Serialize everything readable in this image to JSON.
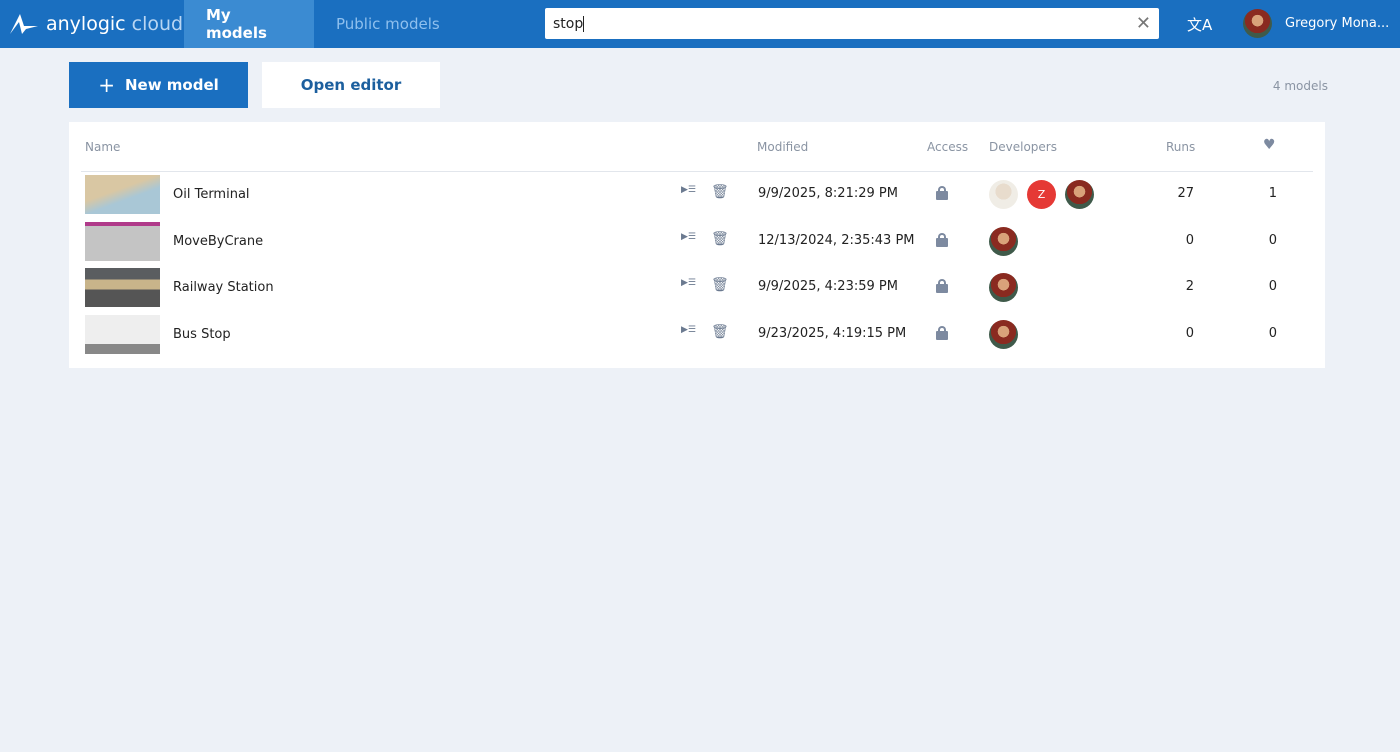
{
  "header": {
    "logo_main": "anylogic",
    "logo_sub": "cloud",
    "tabs": [
      {
        "label": "My models",
        "active": true
      },
      {
        "label": "Public models",
        "active": false
      }
    ],
    "search": {
      "value": "stop"
    },
    "translate_icon": "translate-icon",
    "user_name": "Gregory Mona..."
  },
  "toolbar": {
    "new_model": "New model",
    "open_editor": "Open editor",
    "count": "4 models"
  },
  "table": {
    "headers": {
      "name": "Name",
      "modified": "Modified",
      "access": "Access",
      "developers": "Developers",
      "runs": "Runs",
      "likes_icon": "heart-icon"
    },
    "rows": [
      {
        "name": "Oil Terminal",
        "modified": "9/9/2025, 8:21:29 PM",
        "runs": "27",
        "likes": "1",
        "developers": [
          "photo",
          "Z",
          "photo"
        ]
      },
      {
        "name": "MoveByCrane",
        "modified": "12/13/2024, 2:35:43 PM",
        "runs": "0",
        "likes": "0",
        "developers": [
          "photo"
        ]
      },
      {
        "name": "Railway Station",
        "modified": "9/9/2025, 4:23:59 PM",
        "runs": "2",
        "likes": "0",
        "developers": [
          "photo"
        ]
      },
      {
        "name": "Bus Stop",
        "modified": "9/23/2025, 4:19:15 PM",
        "runs": "0",
        "likes": "0",
        "developers": [
          "photo"
        ]
      }
    ]
  },
  "colors": {
    "brand": "#1a6fc0",
    "background": "#edf1f7",
    "developer_z": "#e53935"
  }
}
